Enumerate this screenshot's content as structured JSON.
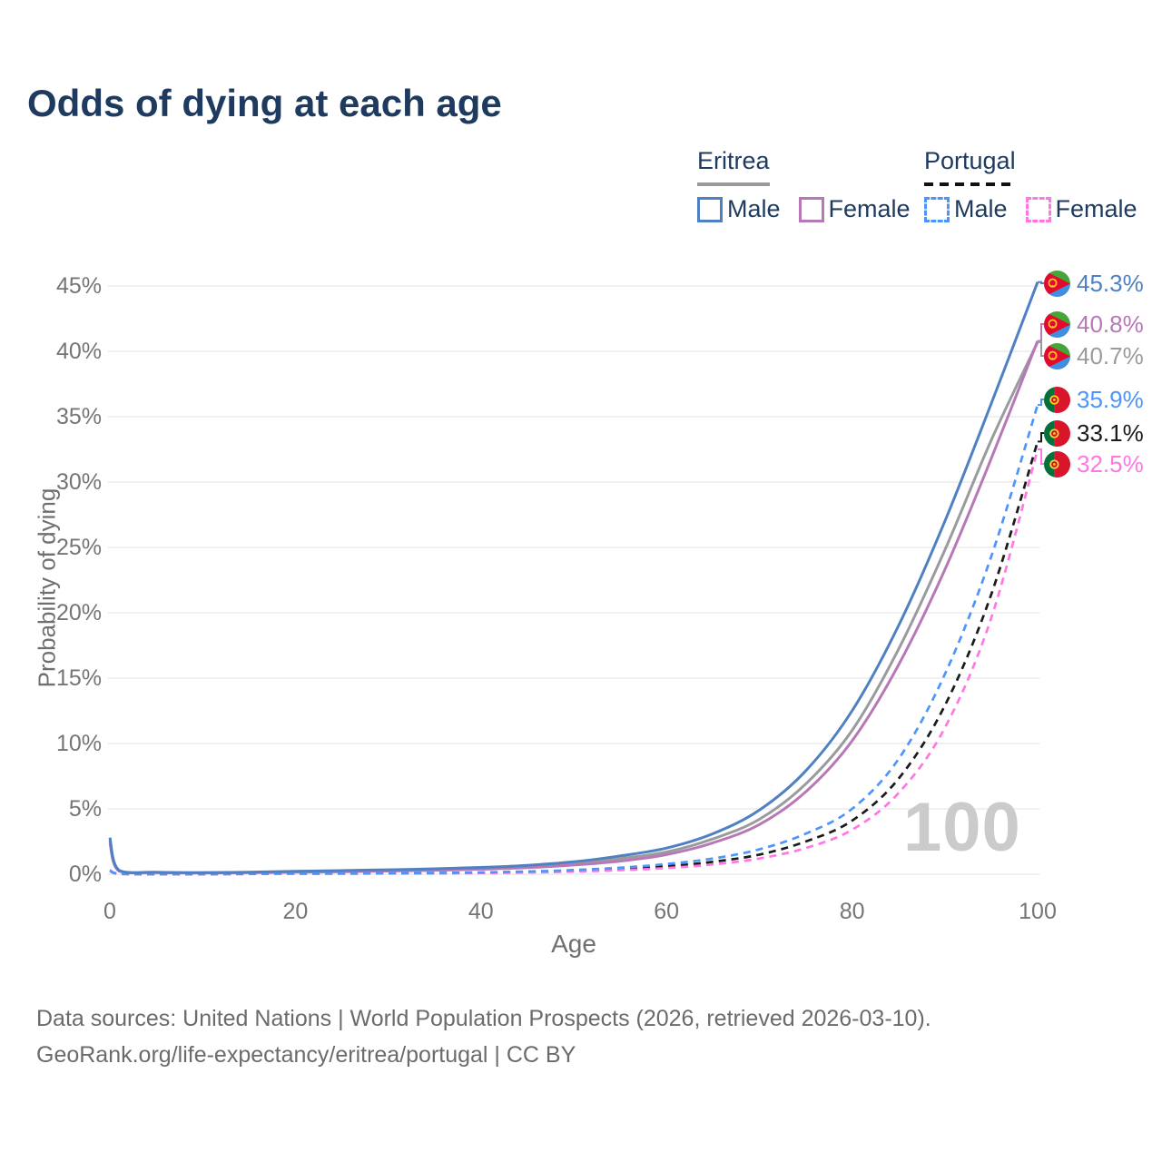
{
  "title": "Odds of dying at each age",
  "legend": {
    "groups": [
      {
        "title": "Eritrea",
        "line_style": "solid",
        "underline_color": "#9b9b9b",
        "items": [
          {
            "label": "Male",
            "color": "#4f81c2"
          },
          {
            "label": "Female",
            "color": "#b878b8"
          }
        ]
      },
      {
        "title": "Portugal",
        "line_style": "dashed",
        "underline_color": "#111111",
        "items": [
          {
            "label": "Male",
            "color": "#4d94fb"
          },
          {
            "label": "Female",
            "color": "#ff77e3"
          }
        ]
      }
    ]
  },
  "watermark_age": "100",
  "footer": {
    "line1": "Data sources: United Nations | World Population Prospects (2026, retrieved 2026-03-10).",
    "line2": "GeoRank.org/life-expectancy/eritrea/portugal | CC BY"
  },
  "chart_data": {
    "type": "line",
    "title": "Odds of dying at each age",
    "xlabel": "Age",
    "ylabel": "Probability of dying",
    "xlim": [
      0,
      100
    ],
    "ylim_pct": [
      0,
      47
    ],
    "grid": "horizontal-only",
    "legend_position": "top-right",
    "x_ticks": [
      {
        "value": 0,
        "label": "0"
      },
      {
        "value": 20,
        "label": "20"
      },
      {
        "value": 40,
        "label": "40"
      },
      {
        "value": 60,
        "label": "60"
      },
      {
        "value": 80,
        "label": "80"
      },
      {
        "value": 100,
        "label": "100"
      }
    ],
    "y_ticks": [
      {
        "value": 0,
        "label": "0%"
      },
      {
        "value": 5,
        "label": "5%"
      },
      {
        "value": 10,
        "label": "10%"
      },
      {
        "value": 15,
        "label": "15%"
      },
      {
        "value": 20,
        "label": "20%"
      },
      {
        "value": 25,
        "label": "25%"
      },
      {
        "value": 30,
        "label": "30%"
      },
      {
        "value": 35,
        "label": "35%"
      },
      {
        "value": 40,
        "label": "40%"
      },
      {
        "value": 45,
        "label": "45%"
      }
    ],
    "ages": [
      0,
      1,
      5,
      10,
      15,
      20,
      25,
      30,
      35,
      40,
      45,
      50,
      55,
      60,
      65,
      70,
      75,
      80,
      85,
      90,
      95,
      100
    ],
    "series": [
      {
        "name": "Eritrea Male",
        "country": "Eritrea",
        "sex": "Male",
        "style": "solid",
        "color": "#4f81c2",
        "flag": "eritrea",
        "end_label": "45.3%",
        "values_pct": [
          2.8,
          0.3,
          0.15,
          0.12,
          0.16,
          0.22,
          0.28,
          0.34,
          0.42,
          0.52,
          0.68,
          0.95,
          1.4,
          2.0,
          3.1,
          4.9,
          7.9,
          12.5,
          19.0,
          27.0,
          36.0,
          45.3
        ]
      },
      {
        "name": "Eritrea Female",
        "country": "Eritrea",
        "sex": "Female",
        "style": "solid",
        "color": "#b878b8",
        "flag": "eritrea",
        "end_label": "40.8%",
        "values_pct": [
          2.4,
          0.24,
          0.12,
          0.1,
          0.12,
          0.15,
          0.19,
          0.24,
          0.3,
          0.38,
          0.5,
          0.7,
          1.0,
          1.5,
          2.4,
          3.8,
          6.3,
          10.2,
          16.0,
          23.3,
          31.8,
          40.8
        ]
      },
      {
        "name": "Eritrea",
        "country": "Eritrea",
        "sex": "All",
        "style": "solid",
        "color": "#9b9b9f",
        "flag": "eritrea",
        "end_label": "40.7%",
        "values_pct": [
          2.6,
          0.27,
          0.13,
          0.11,
          0.14,
          0.18,
          0.23,
          0.28,
          0.35,
          0.44,
          0.58,
          0.8,
          1.2,
          1.7,
          2.7,
          4.2,
          6.9,
          11.0,
          17.2,
          24.8,
          33.2,
          40.7
        ]
      },
      {
        "name": "Portugal Male",
        "country": "Portugal",
        "sex": "Male",
        "style": "dashed",
        "color": "#4d94fb",
        "flag": "portugal",
        "end_label": "35.9%",
        "values_pct": [
          0.3,
          0.03,
          0.01,
          0.01,
          0.03,
          0.06,
          0.07,
          0.08,
          0.1,
          0.14,
          0.21,
          0.32,
          0.5,
          0.78,
          1.2,
          1.9,
          3.1,
          5.0,
          8.8,
          15.3,
          24.3,
          35.9
        ]
      },
      {
        "name": "Portugal",
        "country": "Portugal",
        "sex": "All",
        "style": "dashed",
        "color": "#1a1a1a",
        "flag": "portugal",
        "end_label": "33.1%",
        "values_pct": [
          0.28,
          0.025,
          0.01,
          0.01,
          0.02,
          0.04,
          0.05,
          0.06,
          0.08,
          0.11,
          0.16,
          0.25,
          0.39,
          0.6,
          0.95,
          1.5,
          2.5,
          4.1,
          7.3,
          12.9,
          21.4,
          33.1
        ]
      },
      {
        "name": "Portugal Female",
        "country": "Portugal",
        "sex": "Female",
        "style": "dashed",
        "color": "#ff77e3",
        "flag": "portugal",
        "end_label": "32.5%",
        "values_pct": [
          0.25,
          0.02,
          0.01,
          0.01,
          0.02,
          0.03,
          0.04,
          0.05,
          0.06,
          0.09,
          0.13,
          0.2,
          0.31,
          0.47,
          0.75,
          1.2,
          2.0,
          3.4,
          6.2,
          11.2,
          19.6,
          32.5
        ]
      }
    ]
  }
}
